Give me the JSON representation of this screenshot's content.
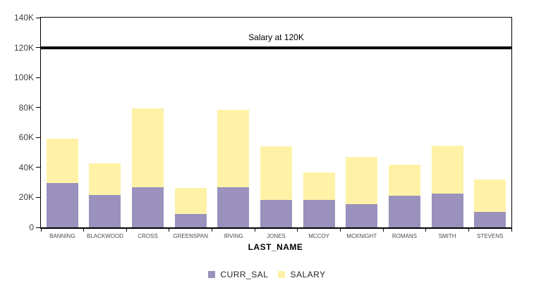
{
  "chart_data": {
    "type": "bar",
    "stacked": true,
    "title": "",
    "xlabel": "LAST_NAME",
    "ylabel": "",
    "categories": [
      "BANNING",
      "BLACKWOOD",
      "CROSS",
      "GREENSPAN",
      "IRVING",
      "JONES",
      "MCCOY",
      "MCKNIGHT",
      "ROMANS",
      "SMITH",
      "STEVENS"
    ],
    "series": [
      {
        "name": "CURR_SAL",
        "color": "#9a91bd",
        "values": [
          29500,
          21500,
          27000,
          9000,
          27000,
          18500,
          18500,
          15500,
          21000,
          22500,
          10500
        ]
      },
      {
        "name": "SALARY",
        "color": "#fff2a7",
        "values": [
          29500,
          21500,
          52500,
          17500,
          51500,
          35500,
          18000,
          31500,
          21000,
          32000,
          21500
        ]
      }
    ],
    "stack_totals": [
      59000,
      43000,
      79500,
      26500,
      78500,
      54000,
      36500,
      47000,
      42000,
      54500,
      32000
    ],
    "ylim": [
      0,
      140000
    ],
    "yticks": [
      {
        "value": 0,
        "label": "0"
      },
      {
        "value": 20000,
        "label": "20K"
      },
      {
        "value": 40000,
        "label": "40K"
      },
      {
        "value": 60000,
        "label": "60K"
      },
      {
        "value": 80000,
        "label": "80K"
      },
      {
        "value": 100000,
        "label": "100K"
      },
      {
        "value": 120000,
        "label": "120K"
      },
      {
        "value": 140000,
        "label": "140K"
      }
    ],
    "reference_line": {
      "value": 120000,
      "label": "Salary at 120K",
      "color": "#000000"
    },
    "legend_position": "bottom",
    "grid": false,
    "plot_background": "#ffffff",
    "axis_color": "#000000"
  }
}
